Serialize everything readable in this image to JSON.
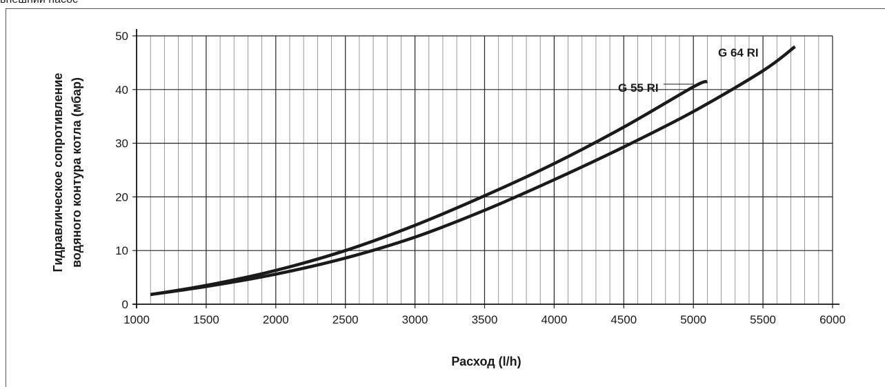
{
  "page": {
    "top_caption": "внешний насос"
  },
  "chart_data": {
    "type": "line",
    "title": "",
    "xlabel": "Расход (l/h)",
    "ylabel_line1": "Гидравлическое сопротивление",
    "ylabel_line2": "водяного контура котла  (мбар)",
    "xlim": [
      1000,
      6000
    ],
    "ylim": [
      0,
      50
    ],
    "x_ticks": [
      "1000",
      "1500",
      "2000",
      "2500",
      "3000",
      "3500",
      "4000",
      "4500",
      "5000",
      "5500",
      "6000"
    ],
    "y_ticks": [
      "0",
      "10",
      "20",
      "30",
      "40",
      "50"
    ],
    "x_minor_step": 100,
    "grid": true,
    "series": [
      {
        "name": "G 55 RI",
        "x": [
          1100,
          1500,
          2000,
          2500,
          3000,
          3500,
          4000,
          4500,
          5000,
          5100
        ],
        "y": [
          1.8,
          3.5,
          6.3,
          10.0,
          14.7,
          20.2,
          26.2,
          33.0,
          40.5,
          41.5
        ]
      },
      {
        "name": "G 64 RI",
        "x": [
          1100,
          1500,
          2000,
          2500,
          3000,
          3500,
          4000,
          4500,
          5000,
          5500,
          5730
        ],
        "y": [
          1.8,
          3.3,
          5.6,
          8.6,
          12.5,
          17.5,
          23.2,
          29.3,
          35.9,
          43.5,
          48.0
        ]
      }
    ],
    "colors": {
      "line": "#1a1a1a",
      "grid": "#808080"
    }
  }
}
